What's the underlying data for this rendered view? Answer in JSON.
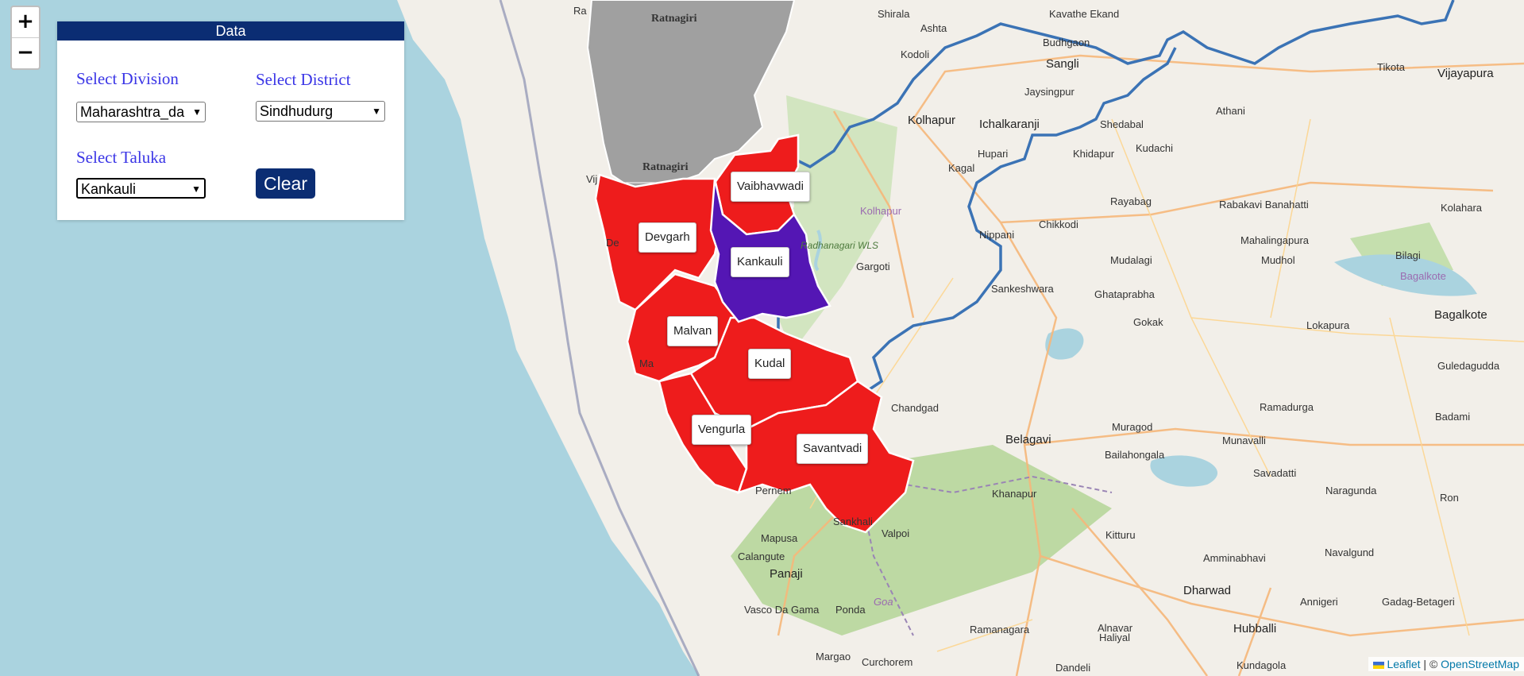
{
  "panel": {
    "title": "Data",
    "division_label": "Select Division",
    "division_value": "Maharashtra_da",
    "district_label": "Select District",
    "district_value": "Sindhudurg",
    "taluka_label": "Select Taluka",
    "taluka_value": "Kankauli",
    "clear_label": "Clear"
  },
  "zoom": {
    "in": "+",
    "out": "−"
  },
  "talukas": [
    {
      "name": "Vaibhavwadi",
      "selected": false
    },
    {
      "name": "Devgarh",
      "selected": false
    },
    {
      "name": "Kankauli",
      "selected": true
    },
    {
      "name": "Malvan",
      "selected": false
    },
    {
      "name": "Kudal",
      "selected": false
    },
    {
      "name": "Vengurla",
      "selected": false
    },
    {
      "name": "Savantvadi",
      "selected": false
    }
  ],
  "colors": {
    "taluka_fill": "#ee1c1c",
    "selected_fill": "#5416b4",
    "neighbor_fill": "#a0a0a0",
    "sea": "#aad3df",
    "land": "#f2efe9",
    "state_border": "#3b73b5",
    "panel_header": "#0b2d73"
  },
  "places": [
    "Ratnagiri",
    "Ratnagiri",
    "Ra",
    "Shirala",
    "Kavathe Ekand",
    "Ashta",
    "Budhgaon",
    "Sangli",
    "Tikota",
    "Vijayapura",
    "Kodoli",
    "Jaysingpur",
    "Athani",
    "Kolhapur",
    "Ichalkaranji",
    "Shedabal",
    "Hupari",
    "Khidapur",
    "Kudachi",
    "Kagal",
    "Rayabag",
    "Rabakavi Banahatti",
    "Kolahara",
    "Kolhapur",
    "Chikkodi",
    "Radhanagari WLS",
    "Nippani",
    "Mahalingapura",
    "Gargoti",
    "Mudalagi",
    "Mudhol",
    "Bilagi",
    "Bagalkote",
    "Sankeshwara",
    "Ghataprabha",
    "Gokak",
    "Lokapura",
    "Bagalkote",
    "Guledagudda",
    "Chandgad",
    "Ramadurga",
    "Badami",
    "Muragod",
    "Belagavi",
    "Munavalli",
    "Bailahongala",
    "Savadatti",
    "Khanapur",
    "Naragunda",
    "Ron",
    "Pernem",
    "Mapusa",
    "Sankhali",
    "Valpoi",
    "Kitturu",
    "Amminabhavi",
    "Navalgund",
    "Calangute",
    "Panaji",
    "Vasco Da Gama",
    "Ponda",
    "Goa",
    "Ramanagara",
    "Alnavar",
    "Dharwad",
    "Annigeri",
    "Gadag-Betageri",
    "Haliyal",
    "Hubballi",
    "Margao",
    "Curchorem",
    "Dandeli",
    "Kundagola",
    "Vij",
    "De",
    "Ma"
  ],
  "attribution": {
    "leaflet": "Leaflet",
    "separator": "| ©",
    "osm": "OpenStreetMap"
  }
}
